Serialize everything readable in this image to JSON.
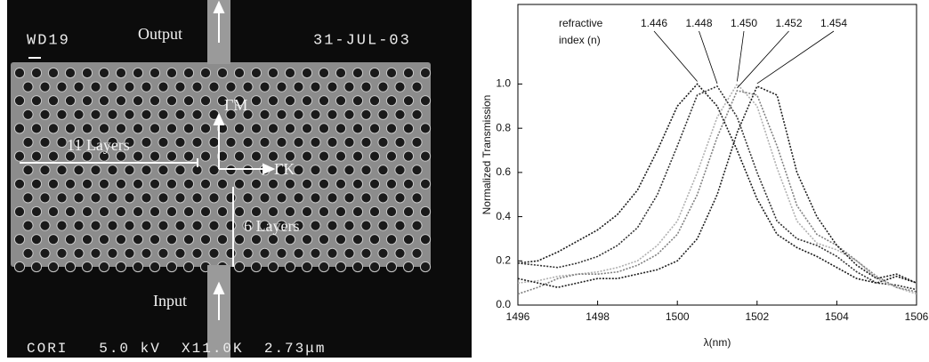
{
  "image": {
    "label_tl": "WD19",
    "date": "31-JUL-03",
    "output": "Output",
    "input": "Input",
    "gm": "ΓM",
    "gk": "ΓK",
    "layers_h": "11 Layers",
    "layers_v": "6 Layers",
    "footer": "CORI   5.0 kV  X11.0K  2.73μm"
  },
  "chart_data": {
    "type": "line",
    "x": [
      1496,
      1496.5,
      1497,
      1497.5,
      1498,
      1498.5,
      1499,
      1499.5,
      1500,
      1500.5,
      1501,
      1501.5,
      1502,
      1502.5,
      1503,
      1503.5,
      1504,
      1504.5,
      1505,
      1505.5,
      1506
    ],
    "series": [
      {
        "name": "1.446",
        "color": "#1a1a1a",
        "values": [
          0.19,
          0.2,
          0.24,
          0.29,
          0.34,
          0.41,
          0.52,
          0.7,
          0.9,
          1.0,
          0.9,
          0.7,
          0.48,
          0.32,
          0.26,
          0.22,
          0.17,
          0.12,
          0.1,
          0.13,
          0.1
        ]
      },
      {
        "name": "1.448",
        "color": "#333333",
        "values": [
          0.19,
          0.18,
          0.17,
          0.19,
          0.22,
          0.27,
          0.35,
          0.5,
          0.72,
          0.95,
          0.99,
          0.85,
          0.6,
          0.38,
          0.3,
          0.27,
          0.22,
          0.15,
          0.1,
          0.09,
          0.07
        ]
      },
      {
        "name": "1.450",
        "color": "#b0b0b0",
        "values": [
          0.1,
          0.11,
          0.13,
          0.14,
          0.15,
          0.17,
          0.2,
          0.27,
          0.38,
          0.6,
          0.85,
          1.0,
          0.9,
          0.62,
          0.38,
          0.28,
          0.25,
          0.2,
          0.12,
          0.08,
          0.05
        ]
      },
      {
        "name": "1.452",
        "color": "#808080",
        "values": [
          0.05,
          0.08,
          0.12,
          0.14,
          0.14,
          0.15,
          0.18,
          0.23,
          0.32,
          0.5,
          0.76,
          0.97,
          0.95,
          0.72,
          0.45,
          0.32,
          0.27,
          0.2,
          0.13,
          0.08,
          0.06
        ]
      },
      {
        "name": "1.454",
        "color": "#202020",
        "values": [
          0.12,
          0.1,
          0.08,
          0.1,
          0.12,
          0.12,
          0.14,
          0.16,
          0.2,
          0.3,
          0.5,
          0.78,
          0.99,
          0.95,
          0.6,
          0.4,
          0.27,
          0.18,
          0.12,
          0.14,
          0.1
        ]
      }
    ],
    "annotation": [
      "refractive",
      "index (n)"
    ],
    "xlabel": "λ(nm)",
    "ylabel": "Normalized Transmission",
    "xlim": [
      1496,
      1506
    ],
    "xticks": [
      1496,
      1498,
      1500,
      1502,
      1504,
      1506
    ],
    "ylim": [
      0,
      1.36
    ],
    "yticks": [
      {
        "value": 0,
        "label": "0.0"
      },
      0.2,
      0.4,
      0.6,
      0.8,
      {
        "value": 1,
        "label": "1.0"
      }
    ]
  }
}
